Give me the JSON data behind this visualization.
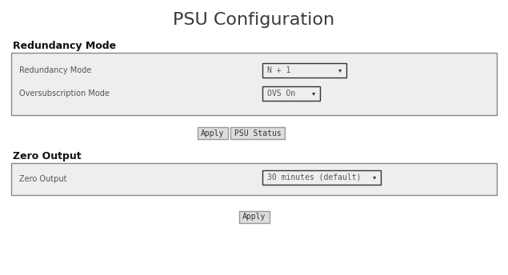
{
  "title": "PSU Configuration",
  "title_fontsize": 16,
  "title_color": "#3a3a3a",
  "bg_color": "#ffffff",
  "section1_label": "Redundancy Mode",
  "section2_label": "Zero Output",
  "section_label_fontsize": 9,
  "section_label_color": "#111111",
  "panel_bg": "#eeeeee",
  "panel_border": "#888888",
  "row1_label": "Redundancy Mode",
  "row2_label": "Oversubscription Mode",
  "row3_label": "Zero Output",
  "dropdown1_text": "N + 1",
  "dropdown2_text": "OVS On",
  "dropdown3_text": "30 minutes (default)",
  "dropdown_bg": "#eeeeee",
  "dropdown_border": "#333333",
  "dropdown_text_color": "#555555",
  "dropdown_text_fontsize": 7,
  "row_label_fontsize": 7,
  "row_label_color": "#555555",
  "button_apply_text": "Apply",
  "button_psu_text": "PSU Status",
  "button_apply2_text": "Apply",
  "button_bg": "#dddddd",
  "button_border": "#999999",
  "button_fontsize": 7,
  "button_text_color": "#333333",
  "arrow_text": "▾",
  "arrow_fontsize": 6,
  "arrow_color": "#333333"
}
